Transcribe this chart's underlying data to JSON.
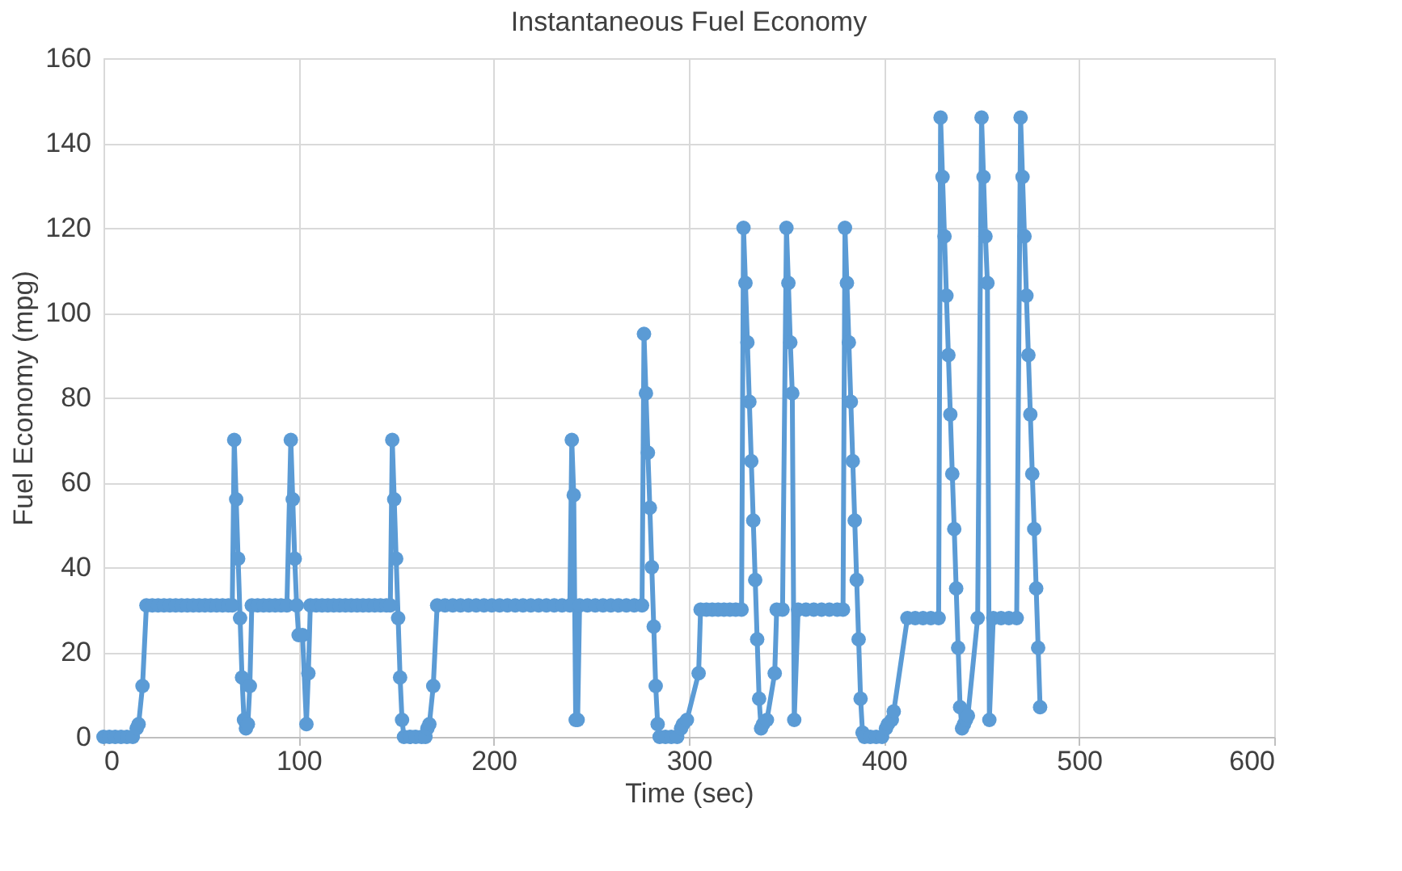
{
  "chart_data": {
    "type": "line",
    "title": "Instantaneous Fuel Economy",
    "xlabel": "Time (sec)",
    "ylabel": "Fuel Economy (mpg)",
    "xlim": [
      0,
      600
    ],
    "xticks": [
      0,
      100,
      200,
      300,
      400,
      500,
      600
    ],
    "ylim": [
      0,
      160
    ],
    "yticks": [
      0,
      20,
      40,
      60,
      80,
      100,
      120,
      140,
      160
    ],
    "grid": true,
    "marker": "circle",
    "line_style": "solid",
    "series": [
      {
        "color": "#5b9bd5",
        "x": [
          0,
          3,
          6,
          9,
          12,
          15,
          17,
          18,
          20,
          22,
          25,
          28,
          31,
          34,
          37,
          40,
          43,
          46,
          49,
          52,
          55,
          58,
          61,
          64,
          66,
          67,
          68,
          69,
          70,
          71,
          72,
          73,
          74,
          75,
          76,
          79,
          82,
          85,
          88,
          91,
          94,
          96,
          97,
          98,
          99,
          100,
          102,
          104,
          105,
          106,
          109,
          112,
          115,
          118,
          121,
          124,
          127,
          130,
          133,
          136,
          139,
          142,
          145,
          147,
          148,
          149,
          150,
          151,
          152,
          153,
          154,
          157,
          160,
          163,
          165,
          166,
          167,
          169,
          171,
          175,
          179,
          183,
          187,
          191,
          195,
          199,
          203,
          207,
          211,
          215,
          219,
          223,
          227,
          231,
          235,
          239,
          240,
          241,
          242,
          243,
          244,
          248,
          252,
          256,
          260,
          264,
          268,
          272,
          276,
          277,
          278,
          279,
          280,
          281,
          282,
          283,
          284,
          285,
          288,
          291,
          294,
          296,
          297,
          299,
          305,
          306,
          309,
          312,
          315,
          318,
          321,
          324,
          327,
          328,
          329,
          330,
          331,
          332,
          333,
          334,
          335,
          336,
          337,
          338,
          340,
          344,
          345,
          348,
          350,
          351,
          352,
          353,
          354,
          356,
          360,
          364,
          368,
          372,
          376,
          379,
          380,
          381,
          382,
          383,
          384,
          385,
          386,
          387,
          388,
          389,
          390,
          393,
          396,
          399,
          401,
          402,
          404,
          405,
          412,
          416,
          420,
          424,
          428,
          429,
          430,
          431,
          432,
          433,
          434,
          435,
          436,
          437,
          438,
          439,
          440,
          441,
          442,
          443,
          448,
          450,
          451,
          452,
          453,
          454,
          456,
          460,
          464,
          468,
          470,
          471,
          472,
          473,
          474,
          475,
          476,
          477,
          478,
          479,
          480
        ],
        "values": [
          0,
          0,
          0,
          0,
          0,
          0,
          2,
          3,
          12,
          31,
          31,
          31,
          31,
          31,
          31,
          31,
          31,
          31,
          31,
          31,
          31,
          31,
          31,
          31,
          31,
          70,
          56,
          42,
          28,
          14,
          4,
          2,
          3,
          12,
          31,
          31,
          31,
          31,
          31,
          31,
          31,
          70,
          56,
          42,
          31,
          24,
          24,
          3,
          15,
          31,
          31,
          31,
          31,
          31,
          31,
          31,
          31,
          31,
          31,
          31,
          31,
          31,
          31,
          31,
          70,
          56,
          42,
          28,
          14,
          4,
          0,
          0,
          0,
          0,
          0,
          2,
          3,
          12,
          31,
          31,
          31,
          31,
          31,
          31,
          31,
          31,
          31,
          31,
          31,
          31,
          31,
          31,
          31,
          31,
          31,
          31,
          70,
          57,
          4,
          4,
          31,
          31,
          31,
          31,
          31,
          31,
          31,
          31,
          31,
          95,
          81,
          67,
          54,
          40,
          26,
          12,
          3,
          0,
          0,
          0,
          0,
          2,
          3,
          4,
          15,
          30,
          30,
          30,
          30,
          30,
          30,
          30,
          30,
          120,
          107,
          93,
          79,
          65,
          51,
          37,
          23,
          9,
          2,
          3,
          4,
          15,
          30,
          30,
          120,
          107,
          93,
          81,
          4,
          30,
          30,
          30,
          30,
          30,
          30,
          30,
          120,
          107,
          93,
          79,
          65,
          51,
          37,
          23,
          9,
          1,
          0,
          0,
          0,
          0,
          2,
          3,
          4,
          6,
          28,
          28,
          28,
          28,
          28,
          146,
          132,
          118,
          104,
          90,
          76,
          62,
          49,
          35,
          21,
          7,
          2,
          3,
          4,
          5,
          28,
          146,
          132,
          118,
          107,
          4,
          28,
          28,
          28,
          28,
          146,
          132,
          118,
          104,
          90,
          76,
          62,
          49,
          35,
          21,
          7
        ]
      }
    ]
  }
}
